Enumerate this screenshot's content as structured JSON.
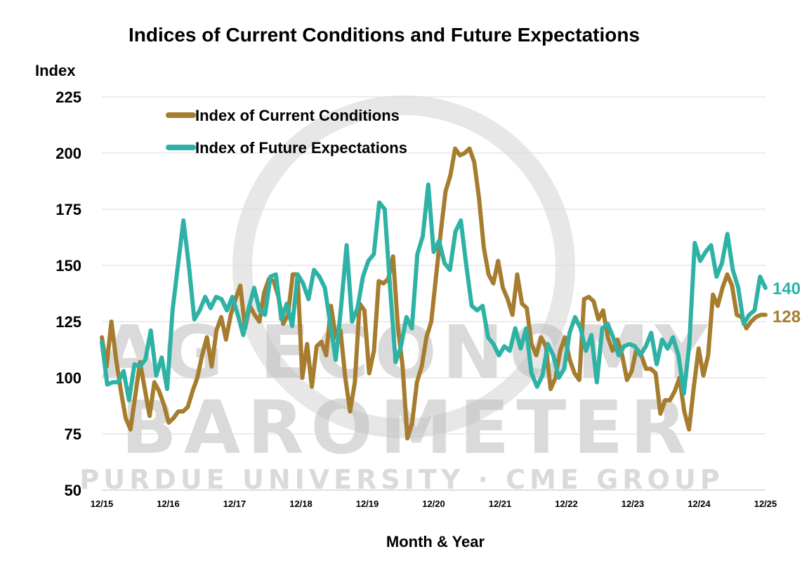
{
  "chart_data": {
    "type": "line",
    "title": "Indices of Current Conditions and Future Expectations",
    "ylabel": "Index",
    "xlabel": "Month & Year",
    "ylim": [
      50,
      225
    ],
    "yticks": [
      50,
      75,
      100,
      125,
      150,
      175,
      200,
      225
    ],
    "xtick_labels": [
      "12/15",
      "12/16",
      "12/17",
      "12/18",
      "12/19",
      "12/20",
      "12/21",
      "12/22",
      "12/23",
      "12/24",
      "12/25"
    ],
    "grid": true,
    "legend_position": "top-left",
    "colors": {
      "current": "#A67C2E",
      "future": "#2EB2A6",
      "watermark": "#bdbdbd"
    },
    "series": [
      {
        "name": "Index of Current Conditions",
        "end_label": "128",
        "values": [
          [
            0,
            118
          ],
          [
            1,
            105
          ],
          [
            2,
            125
          ],
          [
            3,
            108
          ],
          [
            4,
            94
          ],
          [
            5,
            82
          ],
          [
            6,
            77
          ],
          [
            7,
            92
          ],
          [
            8,
            107
          ],
          [
            9,
            95
          ],
          [
            10,
            83
          ],
          [
            11,
            98
          ],
          [
            12,
            94
          ],
          [
            13,
            88
          ],
          [
            14,
            80
          ],
          [
            15,
            82
          ],
          [
            16,
            85
          ],
          [
            17,
            85
          ],
          [
            18,
            87
          ],
          [
            19,
            94
          ],
          [
            20,
            100
          ],
          [
            21,
            110
          ],
          [
            22,
            118
          ],
          [
            23,
            105
          ],
          [
            24,
            121
          ],
          [
            25,
            127
          ],
          [
            26,
            117
          ],
          [
            27,
            128
          ],
          [
            28,
            135
          ],
          [
            29,
            141
          ],
          [
            30,
            122
          ],
          [
            31,
            132
          ],
          [
            32,
            128
          ],
          [
            33,
            125
          ],
          [
            34,
            138
          ],
          [
            35,
            144
          ],
          [
            36,
            143
          ],
          [
            37,
            136
          ],
          [
            38,
            124
          ],
          [
            39,
            128
          ],
          [
            40,
            146
          ],
          [
            41,
            146
          ],
          [
            42,
            100
          ],
          [
            43,
            115
          ],
          [
            44,
            96
          ],
          [
            45,
            114
          ],
          [
            46,
            116
          ],
          [
            47,
            110
          ],
          [
            48,
            132
          ],
          [
            49,
            118
          ],
          [
            50,
            121
          ],
          [
            51,
            100
          ],
          [
            52,
            85
          ],
          [
            53,
            98
          ],
          [
            54,
            133
          ],
          [
            55,
            130
          ],
          [
            56,
            102
          ],
          [
            57,
            112
          ],
          [
            58,
            143
          ],
          [
            59,
            142
          ],
          [
            60,
            144
          ],
          [
            61,
            154
          ],
          [
            62,
            123
          ],
          [
            63,
            105
          ],
          [
            64,
            73
          ],
          [
            65,
            80
          ],
          [
            66,
            98
          ],
          [
            67,
            105
          ],
          [
            68,
            118
          ],
          [
            69,
            125
          ],
          [
            70,
            145
          ],
          [
            71,
            165
          ],
          [
            72,
            183
          ],
          [
            73,
            190
          ],
          [
            74,
            202
          ],
          [
            75,
            199
          ],
          [
            76,
            200
          ],
          [
            77,
            202
          ],
          [
            78,
            196
          ],
          [
            79,
            180
          ],
          [
            80,
            158
          ],
          [
            81,
            146
          ],
          [
            82,
            142
          ],
          [
            83,
            152
          ],
          [
            84,
            140
          ],
          [
            85,
            135
          ],
          [
            86,
            128
          ],
          [
            87,
            146
          ],
          [
            88,
            133
          ],
          [
            89,
            131
          ],
          [
            90,
            115
          ],
          [
            91,
            110
          ],
          [
            92,
            118
          ],
          [
            93,
            114
          ],
          [
            94,
            95
          ],
          [
            95,
            100
          ],
          [
            96,
            112
          ],
          [
            97,
            118
          ],
          [
            98,
            108
          ],
          [
            99,
            102
          ],
          [
            100,
            99
          ],
          [
            101,
            135
          ],
          [
            102,
            136
          ],
          [
            103,
            134
          ],
          [
            104,
            126
          ],
          [
            105,
            130
          ],
          [
            106,
            118
          ],
          [
            107,
            112
          ],
          [
            108,
            117
          ],
          [
            109,
            110
          ],
          [
            110,
            99
          ],
          [
            111,
            103
          ],
          [
            112,
            113
          ],
          [
            113,
            110
          ],
          [
            114,
            104
          ],
          [
            115,
            104
          ],
          [
            116,
            102
          ],
          [
            117,
            84
          ],
          [
            118,
            90
          ],
          [
            119,
            90
          ],
          [
            120,
            94
          ],
          [
            121,
            100
          ],
          [
            122,
            85
          ],
          [
            123,
            77
          ],
          [
            124,
            96
          ],
          [
            125,
            113
          ],
          [
            126,
            101
          ],
          [
            127,
            110
          ],
          [
            128,
            137
          ],
          [
            129,
            132
          ],
          [
            130,
            140
          ],
          [
            131,
            146
          ],
          [
            132,
            141
          ],
          [
            133,
            128
          ],
          [
            134,
            127
          ],
          [
            135,
            122
          ],
          [
            136,
            125
          ],
          [
            137,
            127
          ],
          [
            138,
            128
          ],
          [
            139,
            128
          ]
        ]
      },
      {
        "name": "Index of Future Expectations",
        "end_label": "140",
        "values": [
          [
            0,
            116
          ],
          [
            1,
            97
          ],
          [
            2,
            98
          ],
          [
            3,
            98
          ],
          [
            4,
            103
          ],
          [
            5,
            90
          ],
          [
            6,
            106
          ],
          [
            7,
            105
          ],
          [
            8,
            108
          ],
          [
            9,
            121
          ],
          [
            10,
            101
          ],
          [
            11,
            109
          ],
          [
            12,
            95
          ],
          [
            13,
            130
          ],
          [
            14,
            150
          ],
          [
            15,
            170
          ],
          [
            16,
            150
          ],
          [
            17,
            126
          ],
          [
            18,
            130
          ],
          [
            19,
            136
          ],
          [
            20,
            131
          ],
          [
            21,
            136
          ],
          [
            22,
            135
          ],
          [
            23,
            130
          ],
          [
            24,
            136
          ],
          [
            25,
            128
          ],
          [
            26,
            119
          ],
          [
            27,
            131
          ],
          [
            28,
            140
          ],
          [
            29,
            130
          ],
          [
            30,
            128
          ],
          [
            31,
            145
          ],
          [
            32,
            146
          ],
          [
            33,
            126
          ],
          [
            34,
            133
          ],
          [
            35,
            123
          ],
          [
            36,
            146
          ],
          [
            37,
            142
          ],
          [
            38,
            135
          ],
          [
            39,
            148
          ],
          [
            40,
            145
          ],
          [
            41,
            140
          ],
          [
            42,
            124
          ],
          [
            43,
            108
          ],
          [
            44,
            132
          ],
          [
            45,
            159
          ],
          [
            46,
            125
          ],
          [
            47,
            131
          ],
          [
            48,
            145
          ],
          [
            49,
            152
          ],
          [
            50,
            155
          ],
          [
            51,
            178
          ],
          [
            52,
            175
          ],
          [
            53,
            140
          ],
          [
            54,
            107
          ],
          [
            55,
            114
          ],
          [
            56,
            127
          ],
          [
            57,
            122
          ],
          [
            58,
            155
          ],
          [
            59,
            163
          ],
          [
            60,
            186
          ],
          [
            61,
            156
          ],
          [
            62,
            161
          ],
          [
            63,
            151
          ],
          [
            64,
            148
          ],
          [
            65,
            165
          ],
          [
            66,
            170
          ],
          [
            67,
            150
          ],
          [
            68,
            132
          ],
          [
            69,
            130
          ],
          [
            70,
            132
          ],
          [
            71,
            118
          ],
          [
            72,
            115
          ],
          [
            73,
            110
          ],
          [
            74,
            114
          ],
          [
            75,
            112
          ],
          [
            76,
            122
          ],
          [
            77,
            113
          ],
          [
            78,
            122
          ],
          [
            79,
            102
          ],
          [
            80,
            96
          ],
          [
            81,
            101
          ],
          [
            82,
            115
          ],
          [
            83,
            110
          ],
          [
            84,
            100
          ],
          [
            85,
            104
          ],
          [
            86,
            120
          ],
          [
            87,
            127
          ],
          [
            88,
            122
          ],
          [
            89,
            112
          ],
          [
            90,
            119
          ],
          [
            91,
            98
          ],
          [
            92,
            122
          ],
          [
            93,
            124
          ],
          [
            94,
            118
          ],
          [
            95,
            110
          ],
          [
            96,
            114
          ],
          [
            97,
            115
          ],
          [
            98,
            114
          ],
          [
            99,
            110
          ],
          [
            100,
            114
          ],
          [
            101,
            120
          ],
          [
            102,
            106
          ],
          [
            103,
            117
          ],
          [
            104,
            113
          ],
          [
            105,
            118
          ],
          [
            106,
            110
          ],
          [
            107,
            93
          ],
          [
            108,
            115
          ],
          [
            109,
            160
          ],
          [
            110,
            152
          ],
          [
            111,
            156
          ],
          [
            112,
            159
          ],
          [
            113,
            145
          ],
          [
            114,
            151
          ],
          [
            115,
            164
          ],
          [
            116,
            148
          ],
          [
            117,
            140
          ],
          [
            118,
            124
          ],
          [
            119,
            128
          ],
          [
            120,
            130
          ],
          [
            121,
            145
          ],
          [
            122,
            140
          ]
        ]
      }
    ],
    "n_points_current": 140,
    "n_points_future": 123
  },
  "watermark": {
    "line1": "AG ECONOMY",
    "line2": "BAROMETER",
    "line3": "PURDUE UNIVERSITY  ·  CME GROUP"
  }
}
